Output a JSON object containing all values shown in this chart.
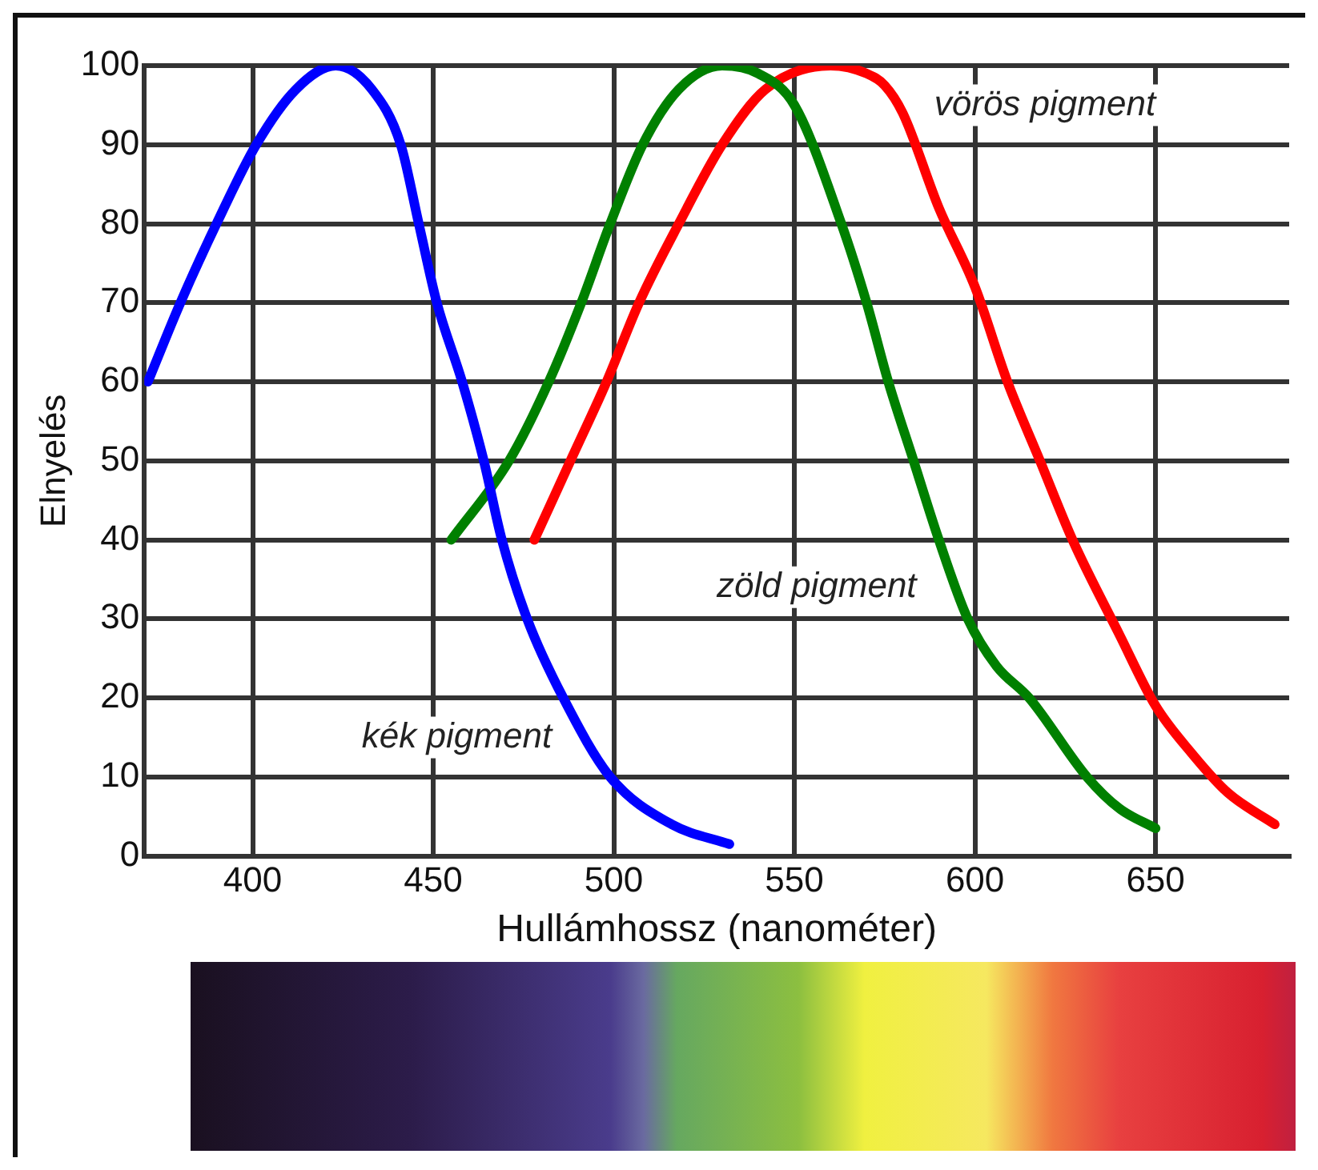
{
  "chart_data": {
    "type": "line",
    "xlabel": "Hullámhossz (nanométer)",
    "ylabel": "Elnyelés",
    "xlim": [
      370,
      687
    ],
    "xticks": [
      400,
      450,
      500,
      550,
      600,
      650
    ],
    "ylim": [
      0,
      100
    ],
    "yticks": [
      0,
      10,
      20,
      30,
      40,
      50,
      60,
      70,
      80,
      90,
      100
    ],
    "grid": true,
    "legend": false,
    "marker": "none",
    "line_style": "solid",
    "series": [
      {
        "name": "kék pigment",
        "color": "#0000ff",
        "x": [
          371,
          380,
          390,
          401,
          412,
          423,
          433,
          441,
          446,
          451,
          458,
          464,
          469,
          476,
          486,
          499,
          516,
          532
        ],
        "values": [
          60,
          70,
          80,
          90,
          97,
          100,
          97,
          90,
          80,
          70,
          60,
          50,
          40,
          30,
          20,
          10,
          4,
          1.5
        ]
      },
      {
        "name": "zöld pigment",
        "color": "#008000",
        "x": [
          455,
          471,
          482,
          491,
          499,
          508,
          518,
          530,
          540,
          550,
          563,
          570,
          576,
          583,
          590,
          598,
          606,
          615,
          631,
          640,
          650
        ],
        "values": [
          40,
          50,
          60,
          70,
          80,
          90,
          97,
          100,
          99,
          95,
          80,
          70,
          60,
          50,
          40,
          30,
          24,
          20,
          10,
          6,
          3.5
        ]
      },
      {
        "name": "vörös pigment",
        "color": "#ff0000",
        "x": [
          478,
          488,
          498,
          507,
          518,
          530,
          542,
          560,
          570,
          575,
          580,
          590,
          600,
          609,
          618,
          627,
          640,
          650,
          660,
          670,
          683
        ],
        "values": [
          40,
          50,
          60,
          70,
          80,
          90,
          97,
          100,
          99,
          97.5,
          94,
          82,
          72,
          60,
          50,
          40,
          28,
          19,
          13,
          8,
          4
        ]
      }
    ]
  }
}
